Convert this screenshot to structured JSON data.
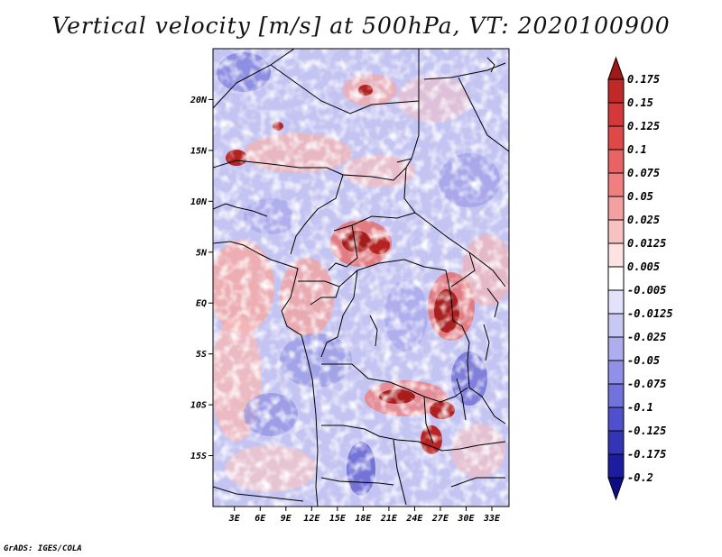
{
  "title": "Vertical velocity [m/s] at 500hPa, VT: 2020100900",
  "map": {
    "variable": "Vertical velocity",
    "units": "m/s",
    "level": "500hPa",
    "valid_time": "2020100900",
    "lat_labels": [
      "20N",
      "15N",
      "10N",
      "5N",
      "EQ",
      "5S",
      "10S",
      "15S"
    ],
    "lat_values": [
      20,
      15,
      10,
      5,
      0,
      -5,
      -10,
      -15
    ],
    "lon_labels": [
      "3E",
      "6E",
      "9E",
      "12E",
      "15E",
      "18E",
      "21E",
      "24E",
      "27E",
      "30E",
      "33E"
    ],
    "lon_values": [
      3,
      6,
      9,
      12,
      15,
      18,
      21,
      24,
      27,
      30,
      33
    ],
    "lon_range": [
      0.5,
      35
    ],
    "lat_range": [
      -20,
      25
    ]
  },
  "colorbar": {
    "labels": [
      "0.175",
      "0.15",
      "0.125",
      "0.1",
      "0.075",
      "0.05",
      "0.025",
      "0.0125",
      "0.005",
      "-0.005",
      "-0.0125",
      "-0.025",
      "-0.05",
      "-0.075",
      "-0.1",
      "-0.125",
      "-0.175",
      "-0.2"
    ],
    "colors": [
      "#a01818",
      "#c22828",
      "#d43838",
      "#e04848",
      "#e86464",
      "#f08080",
      "#f5a0a0",
      "#f9c2c2",
      "#fde2e2",
      "#ffffff",
      "#e2e2fb",
      "#c8c8f5",
      "#aeaeee",
      "#9090e6",
      "#7272dc",
      "#5050cc",
      "#3434b6",
      "#1c1ca0",
      "#0c0c88"
    ],
    "top_color": "#a01818",
    "bottom_color": "#0c0c88"
  },
  "credit": "GrADS: IGES/COLA"
}
